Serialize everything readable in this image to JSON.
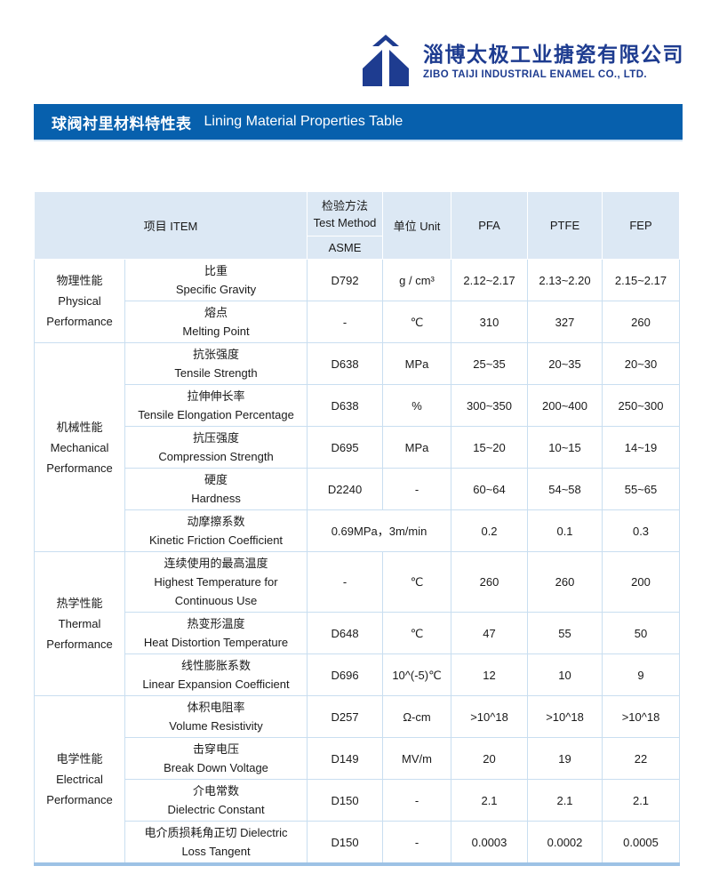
{
  "header": {
    "company_cn": "淄博太极工业搪瓷有限公司",
    "company_en": "ZIBO TAIJI INDUSTRIAL ENAMEL CO., LTD.",
    "logo_color": "#1e3c90"
  },
  "title_bar": {
    "title_cn": "球阀衬里材料特性表",
    "title_en": "Lining Material Properties Table",
    "bg": "#0760ad",
    "text_color": "#ffffff"
  },
  "table": {
    "header": {
      "item": "项目 ITEM",
      "method_cn": "检验方法",
      "method_en": "Test Method",
      "method_sub": "ASME",
      "unit": "单位 Unit",
      "pfa": "PFA",
      "ptfe": "PTFE",
      "fep": "FEP"
    },
    "categories": [
      {
        "lines": [
          "物理性能",
          "Physical",
          "Performance"
        ],
        "rowspan": 2
      },
      {
        "lines": [
          "机械性能",
          "Mechanical",
          "Performance"
        ],
        "rowspan": 5
      },
      {
        "lines": [
          "热学性能",
          "Thermal",
          "Performance"
        ],
        "rowspan": 3
      },
      {
        "lines": [
          "电学性能",
          "Electrical",
          "Performance"
        ],
        "rowspan": 4
      }
    ],
    "rows": [
      {
        "item": [
          "比重",
          "Specific Gravity"
        ],
        "method": "D792",
        "unit": "g / cm³",
        "pfa": "2.12~2.17",
        "ptfe": "2.13~2.20",
        "fep": "2.15~2.17"
      },
      {
        "item": [
          "熔点",
          "Melting Point"
        ],
        "method": "-",
        "unit": "℃",
        "pfa": "310",
        "ptfe": "327",
        "fep": "260"
      },
      {
        "item": [
          "抗张强度",
          "Tensile Strength"
        ],
        "method": "D638",
        "unit": "MPa",
        "pfa": "25~35",
        "ptfe": "20~35",
        "fep": "20~30"
      },
      {
        "item": [
          "拉伸伸长率",
          "Tensile Elongation Percentage"
        ],
        "method": "D638",
        "unit": "%",
        "pfa": "300~350",
        "ptfe": "200~400",
        "fep": "250~300"
      },
      {
        "item": [
          "抗压强度",
          "Compression Strength"
        ],
        "method": "D695",
        "unit": "MPa",
        "pfa": "15~20",
        "ptfe": "10~15",
        "fep": "14~19"
      },
      {
        "item": [
          "硬度",
          "Hardness"
        ],
        "method": "D2240",
        "unit": "-",
        "pfa": "60~64",
        "ptfe": "54~58",
        "fep": "55~65"
      },
      {
        "item": [
          "动摩擦系数",
          "Kinetic Friction Coefficient"
        ],
        "method": "0.69MPa，3m/min",
        "method_colspan": 2,
        "pfa": "0.2",
        "ptfe": "0.1",
        "fep": "0.3"
      },
      {
        "item": [
          "连续使用的最高温度",
          "Highest Temperature for",
          "Continuous Use"
        ],
        "method": "-",
        "unit": "℃",
        "pfa": "260",
        "ptfe": "260",
        "fep": "200",
        "tall": true
      },
      {
        "item": [
          "热变形温度",
          "Heat Distortion Temperature"
        ],
        "method": "D648",
        "unit": "℃",
        "pfa": "47",
        "ptfe": "55",
        "fep": "50"
      },
      {
        "item": [
          "线性膨胀系数",
          "Linear Expansion Coefficient"
        ],
        "method": "D696",
        "unit": "10^(-5)℃",
        "pfa": "12",
        "ptfe": "10",
        "fep": "9"
      },
      {
        "item": [
          "体积电阻率",
          "Volume Resistivity"
        ],
        "method": "D257",
        "unit": "Ω-cm",
        "pfa": ">10^18",
        "ptfe": ">10^18",
        "fep": ">10^18"
      },
      {
        "item": [
          "击穿电压",
          "Break Down Voltage"
        ],
        "method": "D149",
        "unit": "MV/m",
        "pfa": "20",
        "ptfe": "19",
        "fep": "22"
      },
      {
        "item": [
          "介电常数",
          "Dielectric Constant"
        ],
        "method": "D150",
        "unit": "-",
        "pfa": "2.1",
        "ptfe": "2.1",
        "fep": "2.1"
      },
      {
        "item": [
          "电介质损耗角正切 Dielectric",
          "Loss Tangent"
        ],
        "method": "D150",
        "unit": "-",
        "pfa": "0.0003",
        "ptfe": "0.0002",
        "fep": "0.0005"
      }
    ],
    "colors": {
      "header_bg": "#dce8f4",
      "border": "#c9def0",
      "bottom_line": "#9dc2e5"
    }
  }
}
